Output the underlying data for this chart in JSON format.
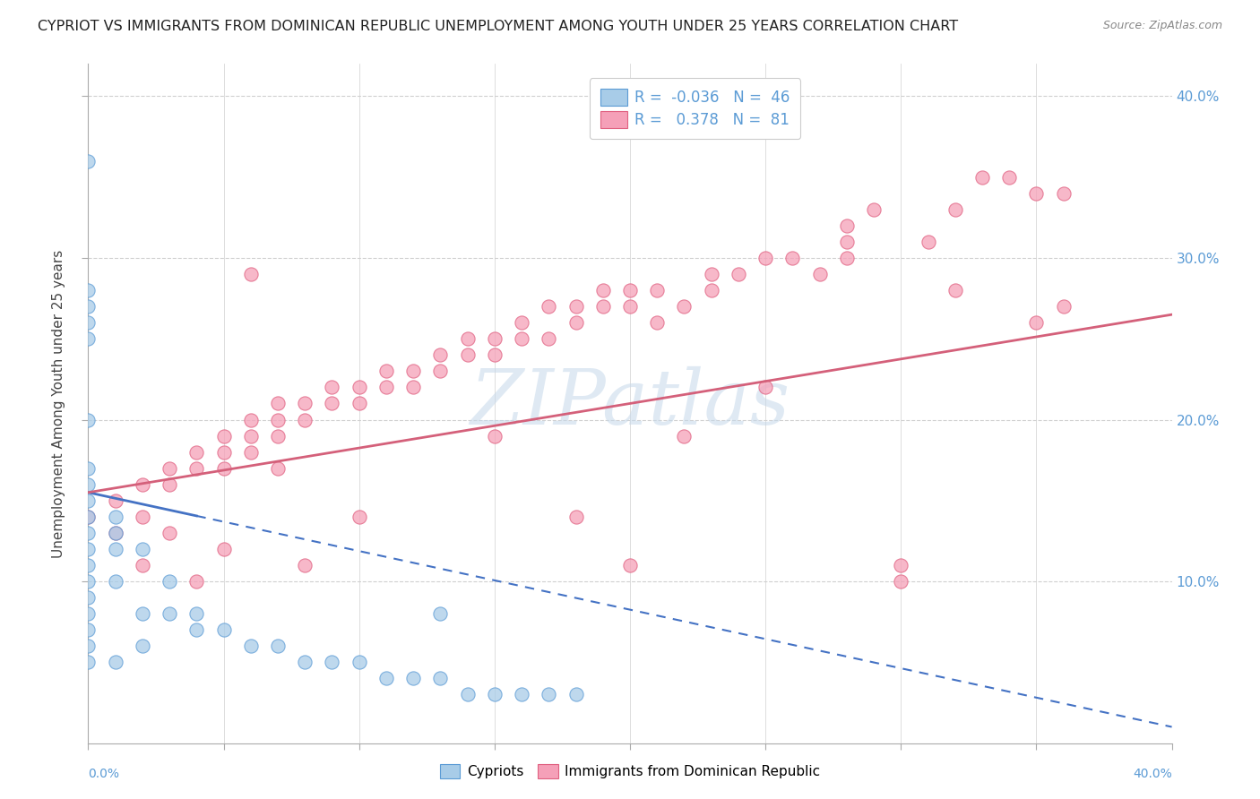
{
  "title": "CYPRIOT VS IMMIGRANTS FROM DOMINICAN REPUBLIC UNEMPLOYMENT AMONG YOUTH UNDER 25 YEARS CORRELATION CHART",
  "source": "Source: ZipAtlas.com",
  "ylabel": "Unemployment Among Youth under 25 years",
  "ytick_vals": [
    0.1,
    0.2,
    0.3,
    0.4
  ],
  "ytick_labels": [
    "10.0%",
    "20.0%",
    "30.0%",
    "40.0%"
  ],
  "xlim": [
    0.0,
    0.4
  ],
  "ylim": [
    0.0,
    0.42
  ],
  "legend_line1": "R =  -0.036   N =  46",
  "legend_line2": "R =   0.378   N =  81",
  "cypriot_fill": "#a8cce8",
  "cypriot_edge": "#5b9bd5",
  "immigrant_fill": "#f5a0b8",
  "immigrant_edge": "#e06080",
  "trend_cyp_color": "#4472c4",
  "trend_imm_color": "#d4607a",
  "background_color": "#ffffff",
  "grid_color": "#d0d0d0",
  "right_tick_color": "#5b9bd5",
  "watermark_color": "#c5d8ea",
  "title_color": "#222222",
  "source_color": "#888888",
  "cyp_x": [
    0.0,
    0.0,
    0.0,
    0.0,
    0.0,
    0.0,
    0.0,
    0.0,
    0.0,
    0.0,
    0.0,
    0.0,
    0.0,
    0.0,
    0.0,
    0.0,
    0.0,
    0.0,
    0.01,
    0.01,
    0.01,
    0.01,
    0.02,
    0.02,
    0.02,
    0.03,
    0.03,
    0.04,
    0.04,
    0.05,
    0.06,
    0.07,
    0.08,
    0.09,
    0.1,
    0.11,
    0.12,
    0.13,
    0.14,
    0.15,
    0.16,
    0.17,
    0.18,
    0.13,
    0.01,
    0.0
  ],
  "cyp_y": [
    0.36,
    0.28,
    0.27,
    0.26,
    0.25,
    0.2,
    0.17,
    0.16,
    0.15,
    0.14,
    0.13,
    0.12,
    0.11,
    0.1,
    0.09,
    0.08,
    0.07,
    0.06,
    0.14,
    0.13,
    0.12,
    0.1,
    0.12,
    0.08,
    0.06,
    0.1,
    0.08,
    0.08,
    0.07,
    0.07,
    0.06,
    0.06,
    0.05,
    0.05,
    0.05,
    0.04,
    0.04,
    0.04,
    0.03,
    0.03,
    0.03,
    0.03,
    0.03,
    0.08,
    0.05,
    0.05
  ],
  "imm_x": [
    0.0,
    0.01,
    0.02,
    0.02,
    0.03,
    0.03,
    0.04,
    0.04,
    0.05,
    0.05,
    0.05,
    0.06,
    0.06,
    0.06,
    0.07,
    0.07,
    0.07,
    0.08,
    0.08,
    0.09,
    0.09,
    0.1,
    0.1,
    0.11,
    0.11,
    0.12,
    0.12,
    0.13,
    0.13,
    0.14,
    0.14,
    0.15,
    0.15,
    0.16,
    0.16,
    0.17,
    0.17,
    0.18,
    0.18,
    0.19,
    0.19,
    0.2,
    0.2,
    0.21,
    0.21,
    0.22,
    0.23,
    0.23,
    0.24,
    0.25,
    0.26,
    0.27,
    0.28,
    0.28,
    0.29,
    0.3,
    0.31,
    0.32,
    0.33,
    0.34,
    0.35,
    0.35,
    0.36,
    0.2,
    0.1,
    0.15,
    0.08,
    0.05,
    0.06,
    0.07,
    0.04,
    0.03,
    0.02,
    0.01,
    0.22,
    0.18,
    0.25,
    0.3,
    0.36,
    0.28,
    0.32
  ],
  "imm_y": [
    0.14,
    0.15,
    0.14,
    0.16,
    0.16,
    0.17,
    0.17,
    0.18,
    0.17,
    0.18,
    0.19,
    0.18,
    0.19,
    0.2,
    0.19,
    0.2,
    0.21,
    0.2,
    0.21,
    0.21,
    0.22,
    0.21,
    0.22,
    0.22,
    0.23,
    0.22,
    0.23,
    0.23,
    0.24,
    0.24,
    0.25,
    0.24,
    0.25,
    0.25,
    0.26,
    0.25,
    0.27,
    0.26,
    0.27,
    0.27,
    0.28,
    0.27,
    0.28,
    0.28,
    0.26,
    0.27,
    0.28,
    0.29,
    0.29,
    0.3,
    0.3,
    0.29,
    0.31,
    0.32,
    0.33,
    0.11,
    0.31,
    0.33,
    0.35,
    0.35,
    0.34,
    0.26,
    0.34,
    0.11,
    0.14,
    0.19,
    0.11,
    0.12,
    0.29,
    0.17,
    0.1,
    0.13,
    0.11,
    0.13,
    0.19,
    0.14,
    0.22,
    0.1,
    0.27,
    0.3,
    0.28
  ],
  "trend_cyp_x0": 0.0,
  "trend_cyp_x1": 0.4,
  "trend_cyp_y0": 0.155,
  "trend_cyp_y1": 0.01,
  "trend_imm_x0": 0.0,
  "trend_imm_x1": 0.4,
  "trend_imm_y0": 0.155,
  "trend_imm_y1": 0.265
}
